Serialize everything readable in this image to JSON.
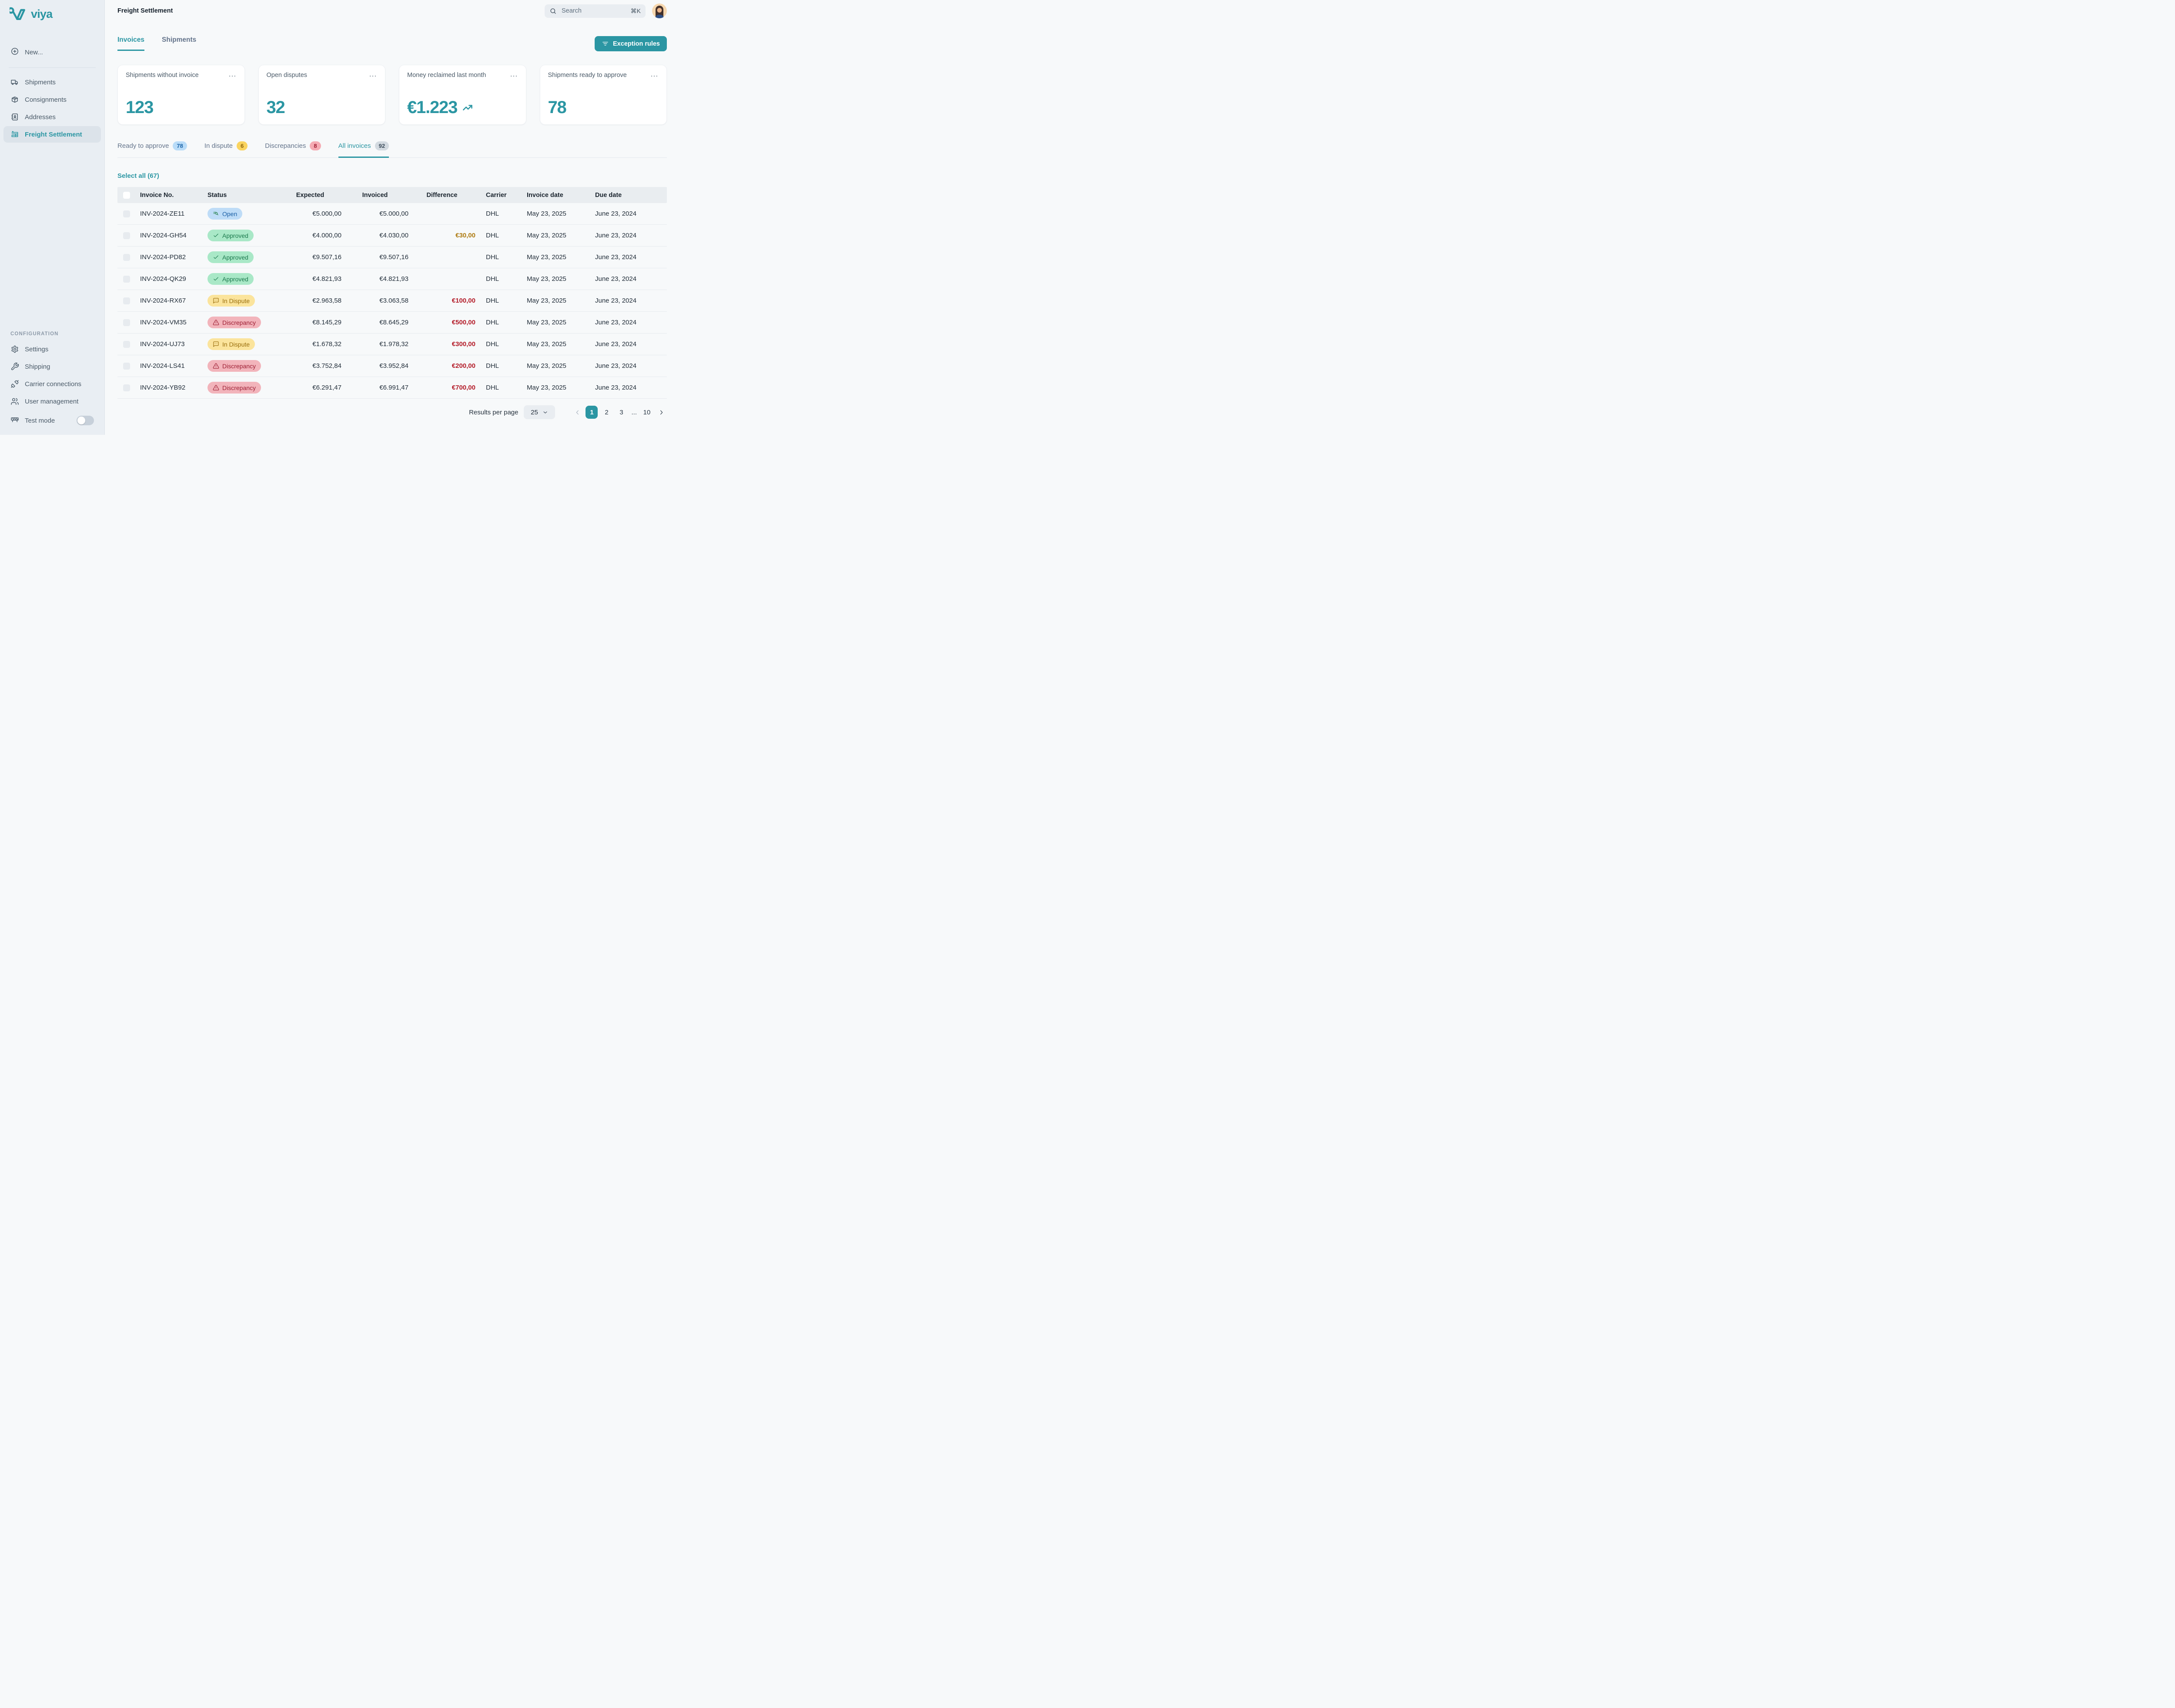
{
  "brand": {
    "name": "viya",
    "accent_color": "#2b96a3"
  },
  "sidebar": {
    "new_item": {
      "label": "New...",
      "icon": "plus-circle-icon"
    },
    "items": [
      {
        "label": "Shipments",
        "icon": "truck-icon",
        "active": false
      },
      {
        "label": "Consignments",
        "icon": "package-icon",
        "active": false
      },
      {
        "label": "Addresses",
        "icon": "address-book-icon",
        "active": false
      },
      {
        "label": "Freight Settlement",
        "icon": "invoice-icon",
        "active": true
      }
    ],
    "configuration": {
      "heading": "CONFIGURATION",
      "items": [
        {
          "label": "Settings",
          "icon": "gear-icon"
        },
        {
          "label": "Shipping",
          "icon": "wrench-icon"
        },
        {
          "label": "Carrier connections",
          "icon": "plug-icon"
        },
        {
          "label": "User management",
          "icon": "users-icon"
        }
      ],
      "test_mode": {
        "label": "Test mode",
        "icon": "barrier-icon",
        "enabled": false
      }
    }
  },
  "topbar": {
    "title": "Freight Settlement",
    "search": {
      "placeholder": "Search",
      "shortcut": "⌘K",
      "icon": "search-icon"
    }
  },
  "page": {
    "tabs": [
      {
        "label": "Invoices",
        "active": true
      },
      {
        "label": "Shipments",
        "active": false
      }
    ],
    "exception_rules_button": {
      "label": "Exception rules",
      "icon": "filter-icon"
    },
    "kpis": [
      {
        "title": "Shipments without invoice",
        "value": "123",
        "trend_icon": false
      },
      {
        "title": "Open disputes",
        "value": "32",
        "trend_icon": false
      },
      {
        "title": "Money reclaimed last month",
        "value": "€1.223",
        "trend_icon": true
      },
      {
        "title": "Shipments ready to approve",
        "value": "78",
        "trend_icon": false
      }
    ],
    "subtabs": [
      {
        "label": "Ready to approve",
        "count": "78",
        "color": "blue",
        "active": false
      },
      {
        "label": "In dispute",
        "count": "6",
        "color": "yellow",
        "active": false
      },
      {
        "label": "Discrepancies",
        "count": "8",
        "color": "red",
        "active": false
      },
      {
        "label": "All invoices",
        "count": "92",
        "color": "gray",
        "active": true
      }
    ],
    "select_all_label": "Select all (67)"
  },
  "table": {
    "columns": [
      "Invoice No.",
      "Status",
      "Expected",
      "Invoiced",
      "Difference",
      "Carrier",
      "Invoice date",
      "Due date"
    ],
    "status_colors": {
      "open_bg": "#bedcf7",
      "approved_bg": "#a9e8c7",
      "dispute_bg": "#fbe49c",
      "discrepancy_bg": "#f2b4bb"
    },
    "difference_colors": {
      "warning": "#ad7a10",
      "danger": "#b31b28"
    },
    "rows": [
      {
        "invoice_no": "INV-2024-ZE11",
        "status": "Open",
        "status_type": "open",
        "expected": "€5.000,00",
        "invoiced": "€5.000,00",
        "difference": "",
        "difference_type": "",
        "carrier": "DHL",
        "invoice_date": "May 23, 2025",
        "due_date": "June 23, 2024"
      },
      {
        "invoice_no": "INV-2024-GH54",
        "status": "Approved",
        "status_type": "approved",
        "expected": "€4.000,00",
        "invoiced": "€4.030,00",
        "difference": "€30,00",
        "difference_type": "warning",
        "carrier": "DHL",
        "invoice_date": "May 23, 2025",
        "due_date": "June 23, 2024"
      },
      {
        "invoice_no": "INV-2024-PD82",
        "status": "Approved",
        "status_type": "approved",
        "expected": "€9.507,16",
        "invoiced": "€9.507,16",
        "difference": "",
        "difference_type": "",
        "carrier": "DHL",
        "invoice_date": "May 23, 2025",
        "due_date": "June 23, 2024"
      },
      {
        "invoice_no": "INV-2024-QK29",
        "status": "Approved",
        "status_type": "approved",
        "expected": "€4.821,93",
        "invoiced": "€4.821,93",
        "difference": "",
        "difference_type": "",
        "carrier": "DHL",
        "invoice_date": "May 23, 2025",
        "due_date": "June 23, 2024"
      },
      {
        "invoice_no": "INV-2024-RX67",
        "status": "In Dispute",
        "status_type": "dispute",
        "expected": "€2.963,58",
        "invoiced": "€3.063,58",
        "difference": "€100,00",
        "difference_type": "danger",
        "carrier": "DHL",
        "invoice_date": "May 23, 2025",
        "due_date": "June 23, 2024"
      },
      {
        "invoice_no": "INV-2024-VM35",
        "status": "Discrepancy",
        "status_type": "discrepancy",
        "expected": "€8.145,29",
        "invoiced": "€8.645,29",
        "difference": "€500,00",
        "difference_type": "danger",
        "carrier": "DHL",
        "invoice_date": "May 23, 2025",
        "due_date": "June 23, 2024"
      },
      {
        "invoice_no": "INV-2024-UJ73",
        "status": "In Dispute",
        "status_type": "dispute",
        "expected": "€1.678,32",
        "invoiced": "€1.978,32",
        "difference": "€300,00",
        "difference_type": "danger",
        "carrier": "DHL",
        "invoice_date": "May 23, 2025",
        "due_date": "June 23, 2024"
      },
      {
        "invoice_no": "INV-2024-LS41",
        "status": "Discrepancy",
        "status_type": "discrepancy",
        "expected": "€3.752,84",
        "invoiced": "€3.952,84",
        "difference": "€200,00",
        "difference_type": "danger",
        "carrier": "DHL",
        "invoice_date": "May 23, 2025",
        "due_date": "June 23, 2024"
      },
      {
        "invoice_no": "INV-2024-YB92",
        "status": "Discrepancy",
        "status_type": "discrepancy",
        "expected": "€6.291,47",
        "invoiced": "€6.991,47",
        "difference": "€700,00",
        "difference_type": "danger",
        "carrier": "DHL",
        "invoice_date": "May 23, 2025",
        "due_date": "June 23, 2024"
      }
    ]
  },
  "pagination": {
    "results_per_page_label": "Results per page",
    "per_page": "25",
    "pages": [
      "1",
      "2",
      "3",
      "...",
      "10"
    ],
    "active_page": "1"
  }
}
